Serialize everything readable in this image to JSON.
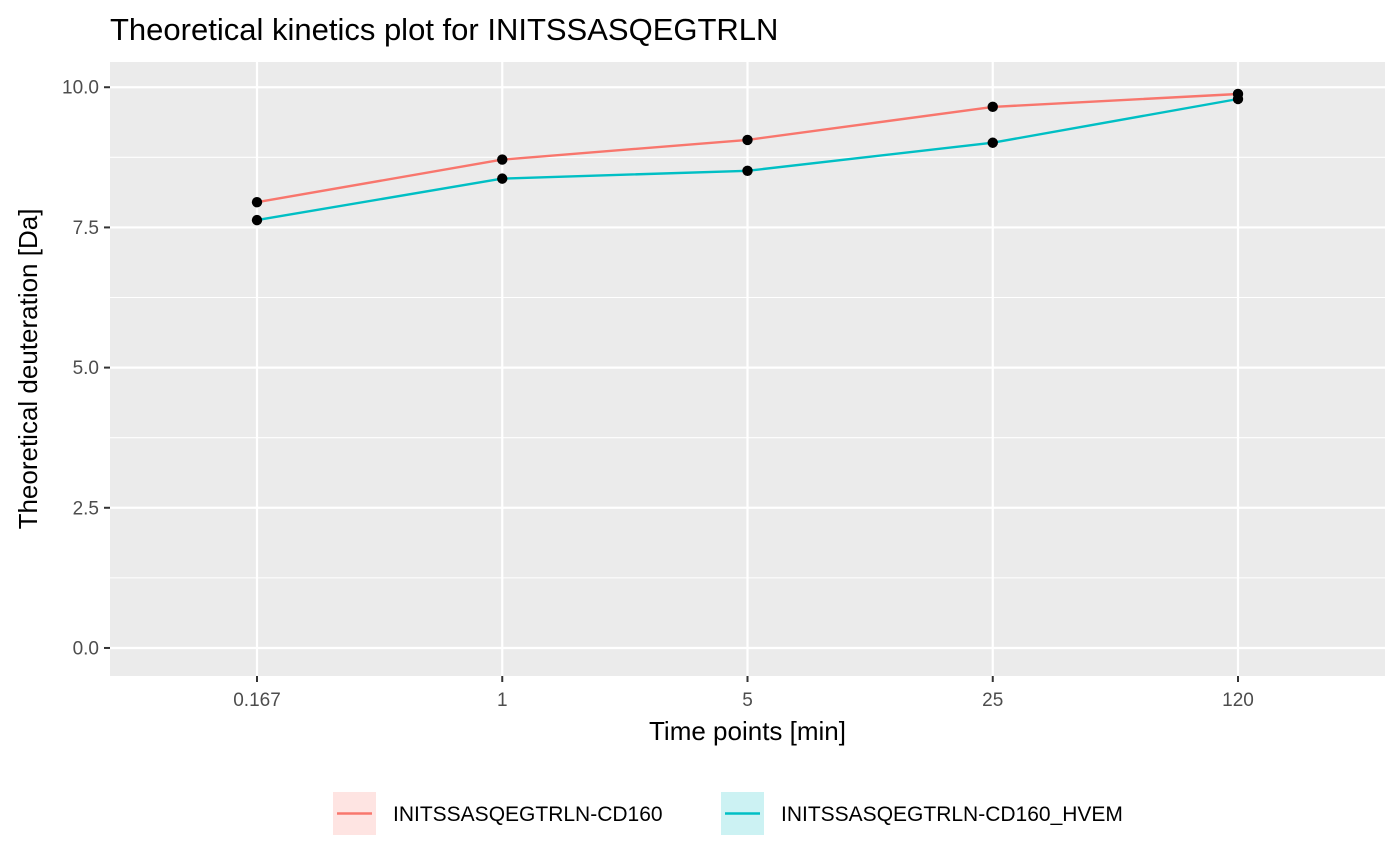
{
  "chart_data": {
    "type": "line",
    "title": "Theoretical kinetics plot for INITSSASQEGTRLN",
    "xlabel": "Time points [min]",
    "ylabel": "Theoretical deuteration [Da]",
    "categories": [
      "0.167",
      "1",
      "5",
      "25",
      "120"
    ],
    "ylim": [
      -0.5,
      10.45
    ],
    "yticks": [
      "0.0",
      "2.5",
      "5.0",
      "7.5",
      "10.0"
    ],
    "ytick_values": [
      0,
      2.5,
      5,
      7.5,
      10
    ],
    "grid": true,
    "legend_position": "bottom",
    "series": [
      {
        "name": "INITSSASQEGTRLN-CD160",
        "color": "#F8766D",
        "values": [
          7.95,
          8.71,
          9.06,
          9.65,
          9.88
        ]
      },
      {
        "name": "INITSSASQEGTRLN-CD160_HVEM",
        "color": "#00BFC4",
        "values": [
          7.63,
          8.37,
          8.51,
          9.01,
          9.79
        ]
      }
    ],
    "colors": {
      "panel_background": "#EBEBEB",
      "grid_major": "#FFFFFF",
      "point": "#000000"
    }
  }
}
